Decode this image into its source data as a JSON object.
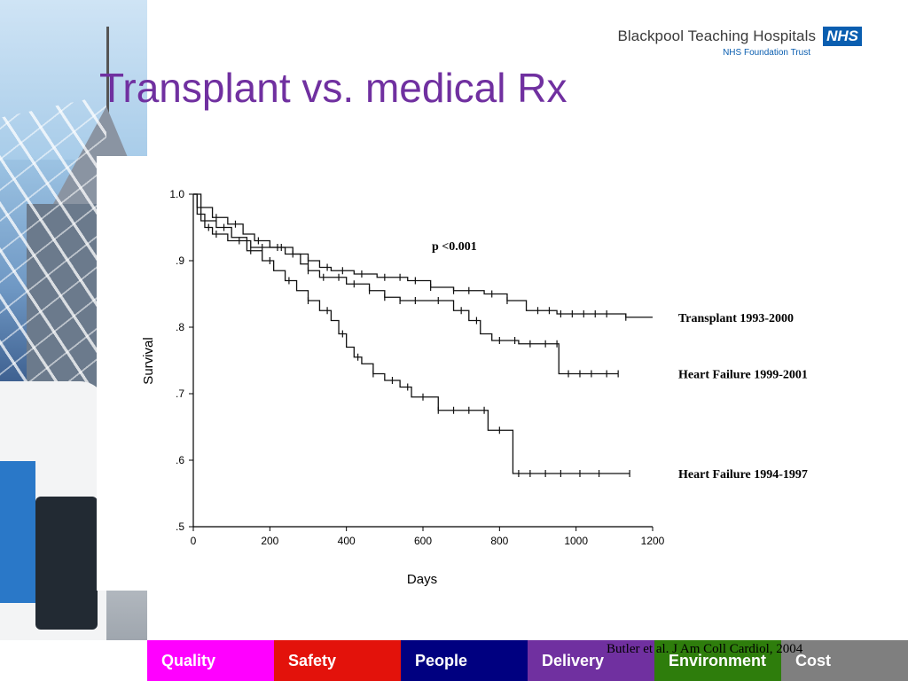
{
  "header": {
    "org_name": "Blackpool Teaching Hospitals",
    "nhs_mark": "NHS",
    "org_subtitle": "NHS Foundation Trust"
  },
  "slide": {
    "title": "Transplant vs. medical Rx",
    "citation": "Butler et al. J Am Coll Cardiol, 2004"
  },
  "chart_data": {
    "type": "line",
    "xlabel": "Days",
    "ylabel": "Survival",
    "xlim": [
      0,
      1200
    ],
    "ylim": [
      0.5,
      1.0
    ],
    "x_ticks": [
      0,
      200,
      400,
      600,
      800,
      1000,
      1200
    ],
    "x_tick_labels": [
      "0",
      "200",
      "400",
      "600",
      "800",
      "1000",
      "1200"
    ],
    "y_ticks": [
      1.0,
      0.9,
      0.8,
      0.7,
      0.6,
      0.5
    ],
    "y_tick_labels": [
      "1.0",
      ".9",
      ".8",
      ".7",
      ".6",
      ".5"
    ],
    "grid": false,
    "annotation": "p <0.001",
    "series": [
      {
        "name": "Transplant 1993-2000",
        "points": [
          [
            0,
            1.0
          ],
          [
            10,
            0.98
          ],
          [
            20,
            0.96
          ],
          [
            30,
            0.95
          ],
          [
            50,
            0.94
          ],
          [
            90,
            0.93
          ],
          [
            150,
            0.92
          ],
          [
            200,
            0.92
          ],
          [
            260,
            0.91
          ],
          [
            300,
            0.9
          ],
          [
            330,
            0.89
          ],
          [
            360,
            0.885
          ],
          [
            420,
            0.88
          ],
          [
            480,
            0.875
          ],
          [
            560,
            0.87
          ],
          [
            620,
            0.86
          ],
          [
            680,
            0.855
          ],
          [
            760,
            0.85
          ],
          [
            820,
            0.84
          ],
          [
            870,
            0.825
          ],
          [
            950,
            0.82
          ],
          [
            1000,
            0.82
          ],
          [
            1060,
            0.82
          ],
          [
            1130,
            0.815
          ],
          [
            1200,
            0.815
          ]
        ],
        "censor_x": [
          40,
          60,
          120,
          180,
          230,
          300,
          350,
          390,
          440,
          500,
          540,
          580,
          620,
          680,
          720,
          780,
          820,
          900,
          930,
          960,
          990,
          1020,
          1050,
          1080,
          1130
        ]
      },
      {
        "name": "Heart Failure 1999-2001",
        "points": [
          [
            0,
            1.0
          ],
          [
            20,
            0.98
          ],
          [
            50,
            0.965
          ],
          [
            90,
            0.955
          ],
          [
            130,
            0.94
          ],
          [
            160,
            0.93
          ],
          [
            200,
            0.92
          ],
          [
            240,
            0.91
          ],
          [
            280,
            0.895
          ],
          [
            300,
            0.885
          ],
          [
            330,
            0.875
          ],
          [
            400,
            0.865
          ],
          [
            460,
            0.855
          ],
          [
            500,
            0.845
          ],
          [
            540,
            0.84
          ],
          [
            620,
            0.84
          ],
          [
            680,
            0.825
          ],
          [
            720,
            0.81
          ],
          [
            750,
            0.79
          ],
          [
            780,
            0.78
          ],
          [
            850,
            0.775
          ],
          [
            950,
            0.775
          ],
          [
            955,
            0.73
          ],
          [
            1000,
            0.73
          ],
          [
            1110,
            0.73
          ]
        ],
        "censor_x": [
          60,
          110,
          170,
          220,
          260,
          300,
          340,
          380,
          420,
          460,
          500,
          540,
          580,
          640,
          700,
          740,
          800,
          840,
          880,
          920,
          950,
          980,
          1010,
          1040,
          1080,
          1110
        ]
      },
      {
        "name": "Heart Failure 1994-1997",
        "points": [
          [
            0,
            1.0
          ],
          [
            10,
            0.97
          ],
          [
            30,
            0.96
          ],
          [
            60,
            0.95
          ],
          [
            100,
            0.935
          ],
          [
            140,
            0.915
          ],
          [
            180,
            0.9
          ],
          [
            210,
            0.885
          ],
          [
            240,
            0.87
          ],
          [
            270,
            0.855
          ],
          [
            300,
            0.84
          ],
          [
            330,
            0.825
          ],
          [
            360,
            0.81
          ],
          [
            380,
            0.79
          ],
          [
            400,
            0.77
          ],
          [
            420,
            0.755
          ],
          [
            440,
            0.745
          ],
          [
            470,
            0.73
          ],
          [
            500,
            0.72
          ],
          [
            540,
            0.71
          ],
          [
            570,
            0.695
          ],
          [
            640,
            0.675
          ],
          [
            760,
            0.675
          ],
          [
            770,
            0.645
          ],
          [
            830,
            0.645
          ],
          [
            835,
            0.58
          ],
          [
            1140,
            0.58
          ]
        ],
        "censor_x": [
          80,
          150,
          200,
          250,
          300,
          350,
          390,
          430,
          470,
          520,
          560,
          600,
          640,
          680,
          720,
          760,
          800,
          850,
          880,
          920,
          960,
          1010,
          1060,
          1140
        ]
      }
    ]
  },
  "nav": {
    "items": [
      {
        "label": "Quality",
        "color": "#ff00ff"
      },
      {
        "label": "Safety",
        "color": "#e3120b"
      },
      {
        "label": "People",
        "color": "#000080"
      },
      {
        "label": "Delivery",
        "color": "#7030a0"
      },
      {
        "label": "Environment",
        "color": "#2e7d0c"
      },
      {
        "label": "Cost",
        "color": "#7f7f7f"
      }
    ]
  },
  "colors": {
    "title": "#7030a0",
    "nhs_blue": "#0a5eb0"
  }
}
